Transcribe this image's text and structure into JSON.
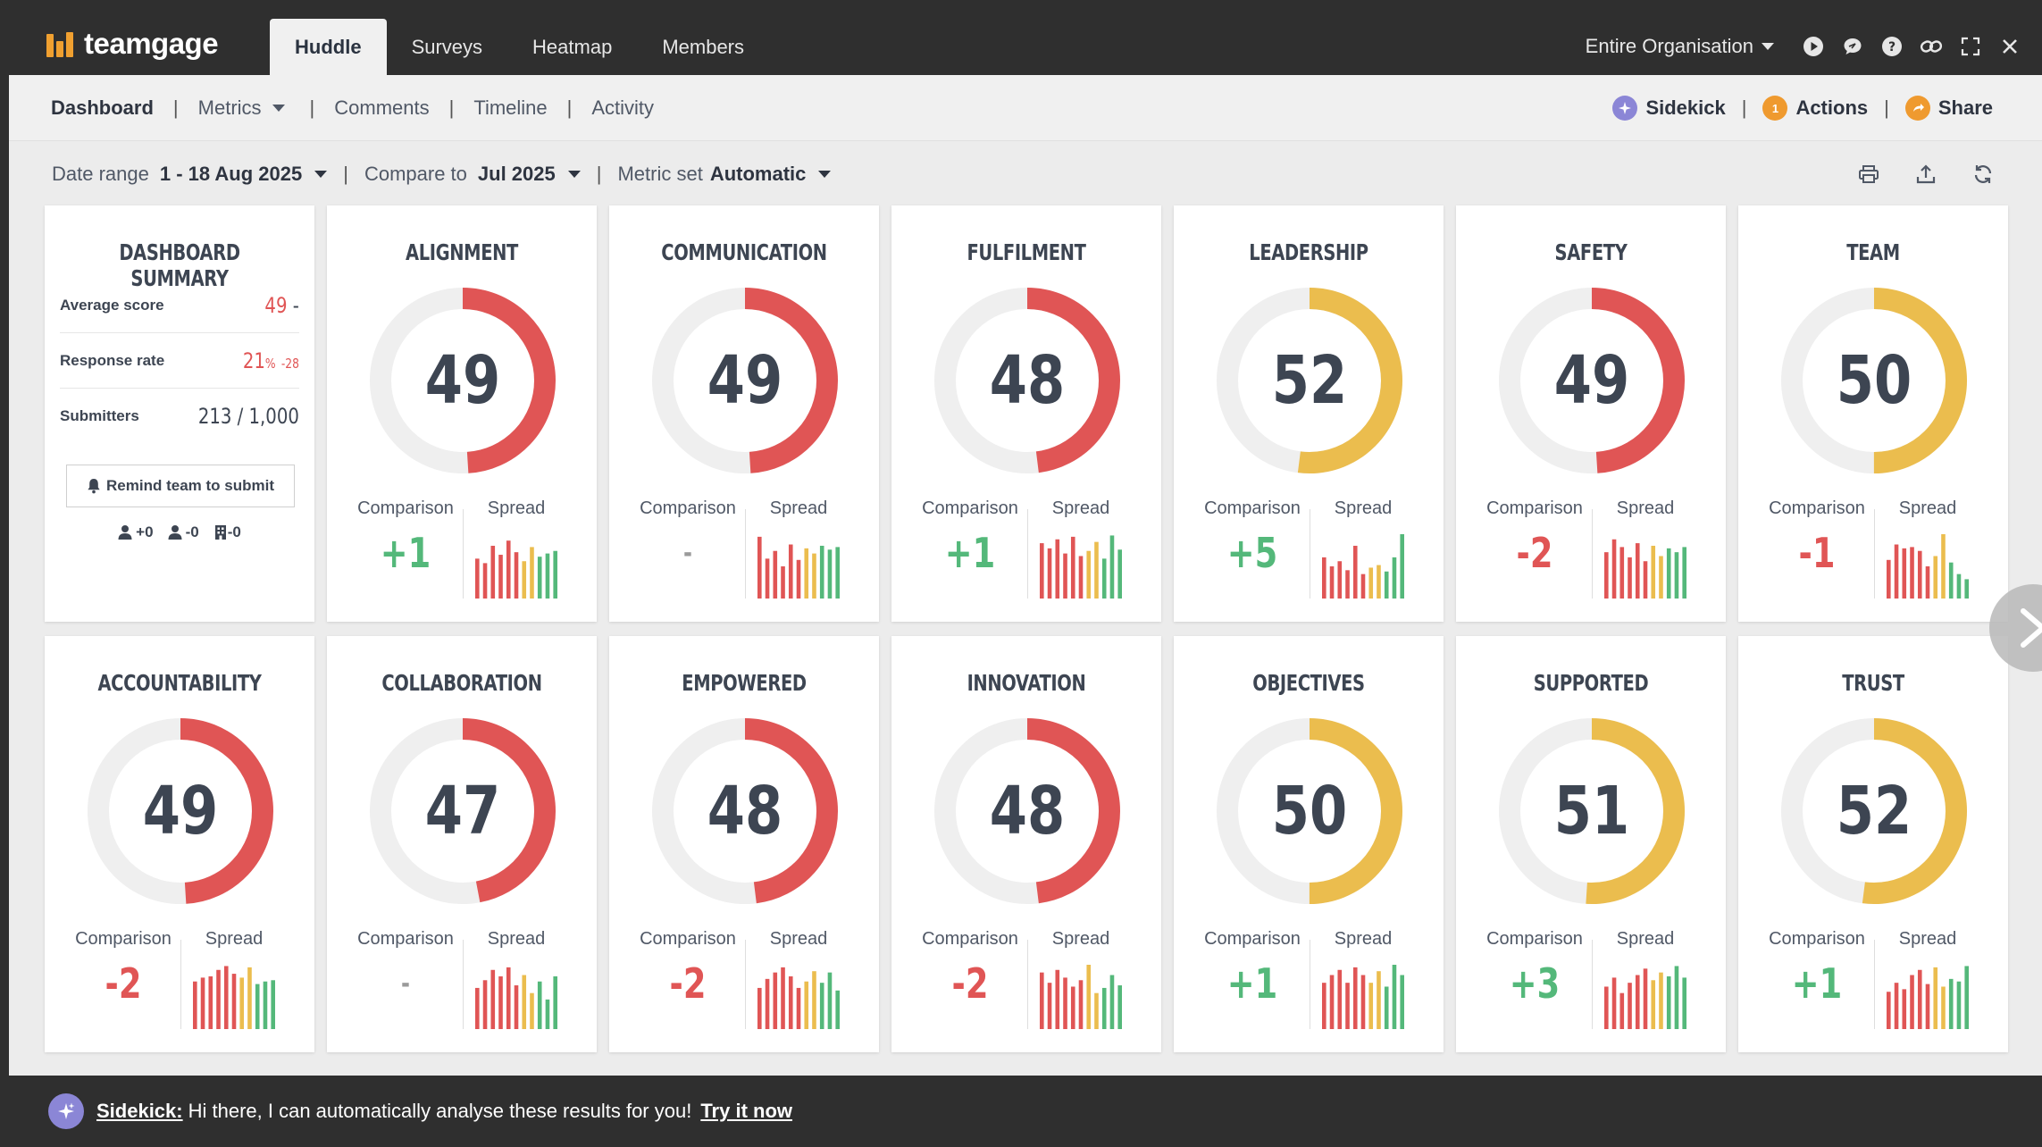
{
  "app": {
    "logo_text": "teamgage"
  },
  "main_tabs": [
    {
      "label": "Huddle",
      "active": true
    },
    {
      "label": "Surveys"
    },
    {
      "label": "Heatmap"
    },
    {
      "label": "Members"
    }
  ],
  "top_right": {
    "org_selector": "Entire Organisation",
    "icons": [
      "play-icon",
      "chat-icon",
      "help-icon",
      "link-icon",
      "fullscreen-icon",
      "close-icon"
    ]
  },
  "subnav": {
    "items": [
      {
        "label": "Dashboard",
        "active": true
      },
      {
        "label": "Metrics",
        "dropdown": true
      },
      {
        "label": "Comments"
      },
      {
        "label": "Timeline"
      },
      {
        "label": "Activity"
      }
    ],
    "right": {
      "sidekick_label": "Sidekick",
      "actions_label": "Actions",
      "actions_badge": "1",
      "share_label": "Share"
    }
  },
  "filters": {
    "date_range_label": "Date range",
    "date_range_value": "1 - 18 Aug 2025",
    "compare_label": "Compare to",
    "compare_value": "Jul 2025",
    "metric_set_label": "Metric set",
    "metric_set_value": "Automatic",
    "tools": [
      "print-icon",
      "export-icon",
      "refresh-icon"
    ]
  },
  "summary": {
    "title": "DASHBOARD SUMMARY",
    "average_label": "Average score",
    "average_value": "49",
    "average_trend": "-",
    "response_label": "Response rate",
    "response_value": "21",
    "response_unit": "%",
    "response_delta": "-28",
    "submitters_label": "Submitters",
    "submitters_value": "213 / 1,000",
    "remind_label": "Remind team to submit",
    "count_added": "+0",
    "count_removed": "-0",
    "count_building": "-0"
  },
  "labels": {
    "comparison": "Comparison",
    "spread": "Spread"
  },
  "colors": {
    "red": "#e05555",
    "yellow": "#ebbd4e",
    "green": "#54b87a",
    "track": "#efefef"
  },
  "metrics": [
    {
      "title": "ALIGNMENT",
      "score": 49,
      "comparison": "+1",
      "trend": "up",
      "spread": [
        0.62,
        0.55,
        0.82,
        0.68,
        0.9,
        0.72,
        0.58,
        0.8,
        0.65,
        0.7,
        0.74
      ]
    },
    {
      "title": "COMMUNICATION",
      "score": 49,
      "comparison": "-",
      "trend": "none",
      "spread": [
        0.96,
        0.62,
        0.74,
        0.5,
        0.84,
        0.6,
        0.78,
        0.7,
        0.82,
        0.76,
        0.8
      ]
    },
    {
      "title": "FULFILMENT",
      "score": 48,
      "comparison": "+1",
      "trend": "up",
      "spread": [
        0.86,
        0.78,
        0.92,
        0.7,
        0.96,
        0.66,
        0.74,
        0.88,
        0.62,
        0.98,
        0.76
      ]
    },
    {
      "title": "LEADERSHIP",
      "score": 52,
      "comparison": "+5",
      "trend": "up",
      "spread": [
        0.64,
        0.5,
        0.58,
        0.44,
        0.82,
        0.38,
        0.48,
        0.52,
        0.42,
        0.64,
        1.0
      ]
    },
    {
      "title": "SAFETY",
      "score": 49,
      "comparison": "-2",
      "trend": "down",
      "spread": [
        0.72,
        0.92,
        0.8,
        0.64,
        0.86,
        0.58,
        0.82,
        0.66,
        0.78,
        0.72,
        0.8
      ]
    },
    {
      "title": "TEAM",
      "score": 50,
      "comparison": "-1",
      "trend": "down",
      "spread": [
        0.6,
        0.84,
        0.78,
        0.8,
        0.74,
        0.5,
        0.66,
        1.0,
        0.56,
        0.38,
        0.3
      ]
    },
    {
      "title": "ACCOUNTABILITY",
      "score": 49,
      "comparison": "-2",
      "trend": "down",
      "spread": [
        0.74,
        0.8,
        0.82,
        0.92,
        0.98,
        0.86,
        0.8,
        0.96,
        0.7,
        0.74,
        0.76
      ]
    },
    {
      "title": "COLLABORATION",
      "score": 47,
      "comparison": "-",
      "trend": "none",
      "spread": [
        0.64,
        0.76,
        0.92,
        0.82,
        0.96,
        0.68,
        0.84,
        0.56,
        0.74,
        0.46,
        0.82
      ]
    },
    {
      "title": "EMPOWERED",
      "score": 48,
      "comparison": "-2",
      "trend": "down",
      "spread": [
        0.64,
        0.78,
        0.88,
        0.96,
        0.82,
        0.64,
        0.74,
        0.9,
        0.72,
        0.88,
        0.6
      ]
    },
    {
      "title": "INNOVATION",
      "score": 48,
      "comparison": "-2",
      "trend": "down",
      "spread": [
        0.88,
        0.72,
        0.92,
        0.8,
        0.66,
        0.76,
        1.0,
        0.56,
        0.64,
        0.84,
        0.68
      ]
    },
    {
      "title": "OBJECTIVES",
      "score": 50,
      "comparison": "+1",
      "trend": "up",
      "spread": [
        0.72,
        0.84,
        0.92,
        0.72,
        0.96,
        0.84,
        0.72,
        0.9,
        0.66,
        1.0,
        0.84
      ]
    },
    {
      "title": "SUPPORTED",
      "score": 51,
      "comparison": "+3",
      "trend": "up",
      "spread": [
        0.66,
        0.8,
        0.56,
        0.72,
        0.84,
        0.94,
        0.76,
        0.88,
        0.82,
        0.98,
        0.8
      ]
    },
    {
      "title": "TRUST",
      "score": 52,
      "comparison": "+1",
      "trend": "up",
      "spread": [
        0.58,
        0.72,
        0.62,
        0.84,
        0.92,
        0.7,
        0.96,
        0.66,
        0.78,
        0.74,
        0.98
      ]
    }
  ],
  "footer": {
    "sidekick_label": "Sidekick:",
    "message": "Hi there, I can automatically analyse these results for you!",
    "link": "Try it now"
  }
}
